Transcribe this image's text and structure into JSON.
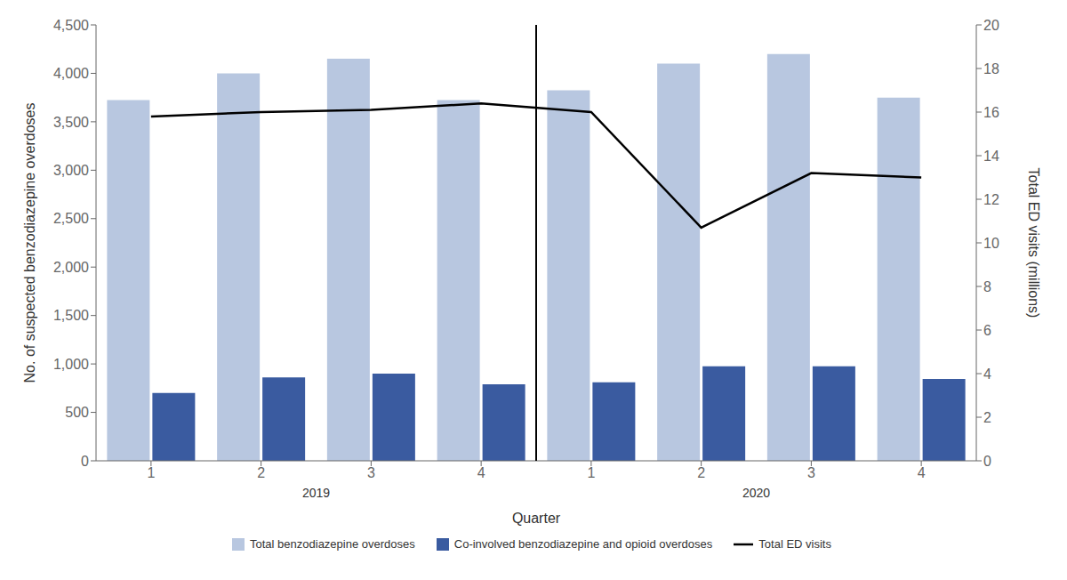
{
  "chart_data": {
    "type": "bar",
    "categories": [
      "1",
      "2",
      "3",
      "4",
      "1",
      "2",
      "3",
      "4"
    ],
    "x_label": "Quarter",
    "y_label": "No. of suspected benzodiazepine overdoses",
    "y2_label": "Total ED visits (millions)",
    "series": [
      {
        "name": "Total benzodiazepine overdoses",
        "type": "bar",
        "color": "#b8c7e0",
        "values": [
          3725,
          4000,
          4150,
          3725,
          3825,
          4100,
          4200,
          3750
        ]
      },
      {
        "name": "Co-involved benzodiazepine and opioid overdoses",
        "type": "bar",
        "color": "#3a5ba0",
        "values": [
          700,
          860,
          900,
          790,
          810,
          975,
          975,
          845
        ]
      },
      {
        "name": "Total ED visits",
        "type": "line",
        "axis": "y2",
        "color": "#000000",
        "values": [
          15.8,
          16.0,
          16.1,
          16.4,
          16.0,
          10.7,
          13.2,
          13.0
        ]
      }
    ],
    "ylim": [
      0,
      4500
    ],
    "yticks": [
      0,
      500,
      {
        "value": 1000,
        "label": "1,000"
      },
      {
        "value": 1500,
        "label": "1,500"
      },
      {
        "value": 2000,
        "label": "2,000"
      },
      {
        "value": 2500,
        "label": "2,500"
      },
      {
        "value": 3000,
        "label": "3,000"
      },
      {
        "value": 3500,
        "label": "3,500"
      },
      {
        "value": 4000,
        "label": "4,000"
      },
      {
        "value": 4500,
        "label": "4,500"
      }
    ],
    "y2lim": [
      0,
      20
    ],
    "y2ticks": [
      0,
      2,
      4,
      6,
      8,
      10,
      12,
      14,
      16,
      18,
      20
    ],
    "grid": false,
    "legend": "bottom",
    "annotations": [
      {
        "text": "2019"
      },
      {
        "text": "2020"
      }
    ]
  }
}
